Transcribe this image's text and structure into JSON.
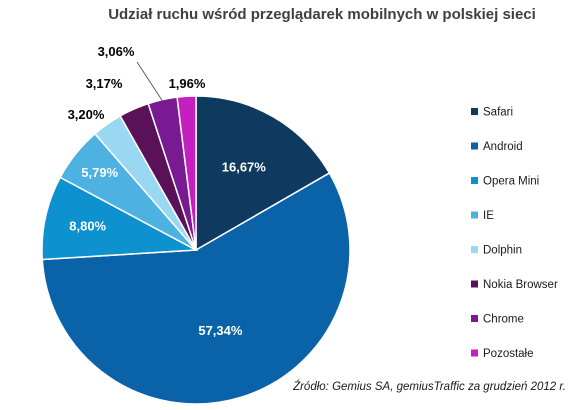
{
  "chart_data": {
    "type": "pie",
    "title": "Udział ruchu wśród przeglądarek mobilnych w polskiej sieci",
    "categories": [
      "Safari",
      "Android",
      "Opera Mini",
      "IE",
      "Dolphin",
      "Nokia Browser",
      "Chrome",
      "Pozostałe"
    ],
    "values": [
      16.67,
      57.34,
      8.8,
      5.79,
      3.2,
      3.17,
      3.06,
      1.96
    ],
    "labels": [
      "16,67%",
      "57,34%",
      "8,80%",
      "5,79%",
      "3,20%",
      "3,17%",
      "3,06%",
      "1,96%"
    ],
    "colors": [
      "#0e3a5f",
      "#0a63a8",
      "#0e92cf",
      "#4db1e1",
      "#9ad7f2",
      "#5a1157",
      "#7a1a93",
      "#c51fc0"
    ],
    "legend_position": "right",
    "source": "Źródło: Gemius SA, gemiusTraffic za grudzień 2012 r."
  }
}
